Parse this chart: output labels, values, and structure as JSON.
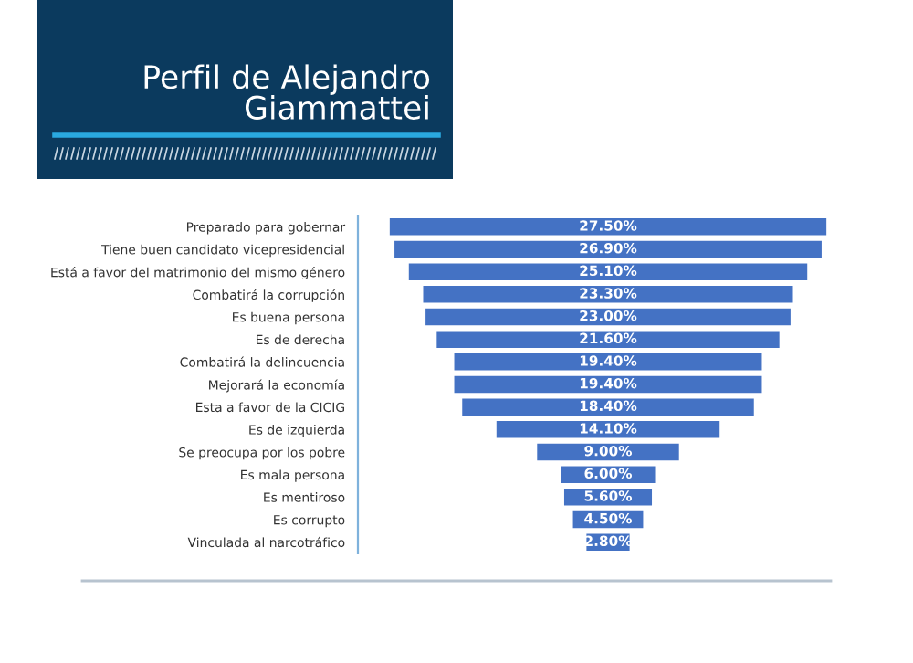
{
  "chart_data": {
    "type": "other",
    "title": "Perfil de Alejandro\nGiammattei",
    "categories": [
      "Preparado para gobernar",
      "Tiene buen candidato vicepresidencial",
      "Está a favor del matrimonio del mismo género",
      "Combatirá la corrupción",
      "Es buena persona",
      "Es de derecha",
      "Combatirá la delincuencia",
      "Mejorará la economía",
      "Esta a favor de la CICIG",
      "Es de izquierda",
      "Se preocupa por los pobre",
      "Es mala persona",
      "Es mentiroso",
      "Es corrupto",
      "Vinculada al narcotráfico"
    ],
    "values": [
      27.5,
      26.9,
      25.1,
      23.3,
      23.0,
      21.6,
      19.4,
      19.4,
      18.4,
      14.1,
      9.0,
      6.0,
      5.6,
      4.5,
      2.8
    ],
    "value_labels": [
      "27.50%",
      "26.90%",
      "25.10%",
      "23.30%",
      "23.00%",
      "21.60%",
      "19.40%",
      "19.40%",
      "18.40%",
      "14.10%",
      "9.00%",
      "6.00%",
      "5.60%",
      "4.50%",
      "2.80%"
    ],
    "color": "#4472c4",
    "data_labels": true
  }
}
